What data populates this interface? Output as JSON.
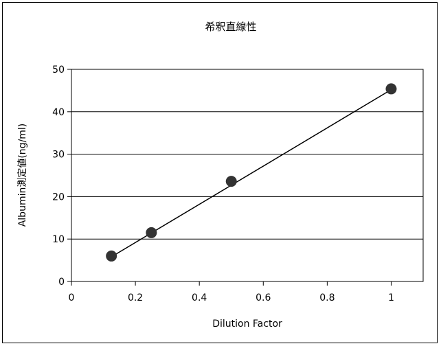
{
  "chart_data": {
    "type": "scatter",
    "title": "希釈直線性",
    "xlabel": "Dilution Factor",
    "ylabel": "Albumin測定値(ng/ml)",
    "xlim": [
      0,
      1.1
    ],
    "ylim": [
      0,
      50
    ],
    "xticks": [
      "0",
      "0.2",
      "0.4",
      "0.6",
      "0.8",
      "1"
    ],
    "yticks": [
      "0",
      "10",
      "20",
      "30",
      "40",
      "50"
    ],
    "x_tick_values": [
      0,
      0.2,
      0.4,
      0.6,
      0.8,
      1
    ],
    "y_tick_values": [
      0,
      10,
      20,
      30,
      40,
      50
    ],
    "grid": "horizontal",
    "series": [
      {
        "points": [
          {
            "x": 0.125,
            "y": 6.0
          },
          {
            "x": 0.25,
            "y": 11.5
          },
          {
            "x": 0.5,
            "y": 23.6
          },
          {
            "x": 1.0,
            "y": 45.4
          }
        ]
      }
    ],
    "trendline": {
      "type": "linear",
      "from": {
        "x": 0.125,
        "y": 5.8
      },
      "to": {
        "x": 1.0,
        "y": 45.2
      }
    },
    "colors": {
      "marker": "#333333",
      "line": "#000000",
      "grid": "#000000"
    }
  }
}
